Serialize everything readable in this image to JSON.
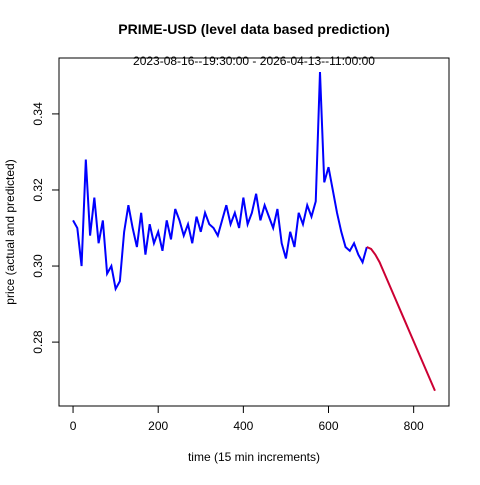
{
  "chart_data": {
    "type": "line",
    "title": "PRIME-USD (level data based prediction)",
    "subtitle": "2023-08-16--19:30:00  -  2026-04-13--11:00:00",
    "xlabel": "time (15 min increments)",
    "ylabel": "price (actual and predicted)",
    "xlim": [
      -33,
      883
    ],
    "ylim": [
      0.2632,
      0.3547
    ],
    "xticks": [
      0,
      200,
      400,
      600,
      800
    ],
    "yticks": [
      0.28,
      {
        "value": 0.3,
        "label": "0.30"
      },
      0.32,
      0.34
    ],
    "series": [
      {
        "color": "#0000ff",
        "x": [
          0,
          10,
          20,
          30,
          40,
          50,
          60,
          70,
          80,
          90,
          100,
          110,
          120,
          130,
          140,
          150,
          160,
          170,
          180,
          190,
          200,
          210,
          220,
          230,
          240,
          250,
          260,
          270,
          280,
          290,
          300,
          310,
          320,
          330,
          340,
          350,
          360,
          370,
          380,
          390,
          400,
          410,
          420,
          430,
          440,
          450,
          460,
          470,
          480,
          490,
          500,
          510,
          520,
          530,
          540,
          550,
          560,
          570,
          580,
          590,
          600,
          610,
          620,
          630,
          640,
          650,
          660,
          670,
          680,
          690
        ],
        "values": [
          0.312,
          0.31,
          0.3,
          0.328,
          0.308,
          0.318,
          0.306,
          0.312,
          0.298,
          0.3,
          0.294,
          0.296,
          0.309,
          0.316,
          0.31,
          0.305,
          0.314,
          0.303,
          0.311,
          0.306,
          0.309,
          0.304,
          0.312,
          0.307,
          0.315,
          0.312,
          0.308,
          0.311,
          0.306,
          0.313,
          0.309,
          0.314,
          0.311,
          0.31,
          0.308,
          0.312,
          0.316,
          0.311,
          0.314,
          0.31,
          0.318,
          0.311,
          0.314,
          0.319,
          0.312,
          0.316,
          0.313,
          0.31,
          0.315,
          0.306,
          0.302,
          0.309,
          0.305,
          0.314,
          0.311,
          0.316,
          0.313,
          0.317,
          0.351,
          0.322,
          0.326,
          0.32,
          0.314,
          0.309,
          0.305,
          0.304,
          0.306,
          0.303,
          0.301,
          0.305
        ]
      },
      {
        "color": "#cc0033",
        "x": [
          690,
          700,
          710,
          720,
          730,
          740,
          750,
          760,
          770,
          780,
          790,
          800,
          810,
          820,
          830,
          840,
          850
        ],
        "values": [
          0.305,
          0.3045,
          0.303,
          0.301,
          0.2984,
          0.2958,
          0.2932,
          0.2906,
          0.288,
          0.2854,
          0.2828,
          0.2802,
          0.2776,
          0.275,
          0.2724,
          0.2698,
          0.2672
        ]
      }
    ]
  }
}
